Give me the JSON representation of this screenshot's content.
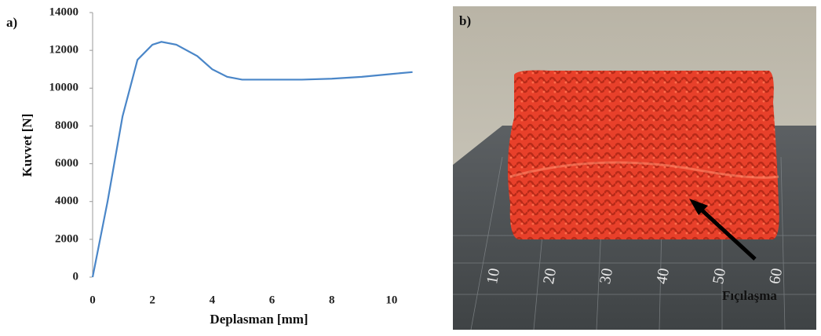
{
  "chart_data": {
    "type": "line",
    "panel_label": "a)",
    "x_label": "Deplasman  [mm]",
    "y_label": "Kuvvet  [N]",
    "x": [
      0,
      0.5,
      1,
      1.5,
      2,
      2.3,
      2.8,
      3.5,
      4,
      4.5,
      5,
      6,
      7,
      8,
      9,
      10,
      10.7
    ],
    "series": [
      {
        "name": "Kuvvet",
        "color": "#4a86c8",
        "values": [
          0,
          4000,
          8500,
          11500,
          12300,
          12450,
          12300,
          11700,
          11000,
          10600,
          10450,
          10450,
          10450,
          10500,
          10600,
          10750,
          10850
        ]
      }
    ],
    "xlim": [
      0,
      11
    ],
    "xticks": [
      0,
      2,
      4,
      6,
      8,
      10
    ],
    "ylim": [
      0,
      14000
    ],
    "yticks": [
      0,
      2000,
      4000,
      6000,
      8000,
      10000,
      12000,
      14000
    ],
    "grid": false
  },
  "photo": {
    "panel_label": "b)",
    "annotation": "Fıçılaşma",
    "ruler_labels": [
      "10",
      "20",
      "30",
      "40",
      "50",
      "60"
    ]
  }
}
